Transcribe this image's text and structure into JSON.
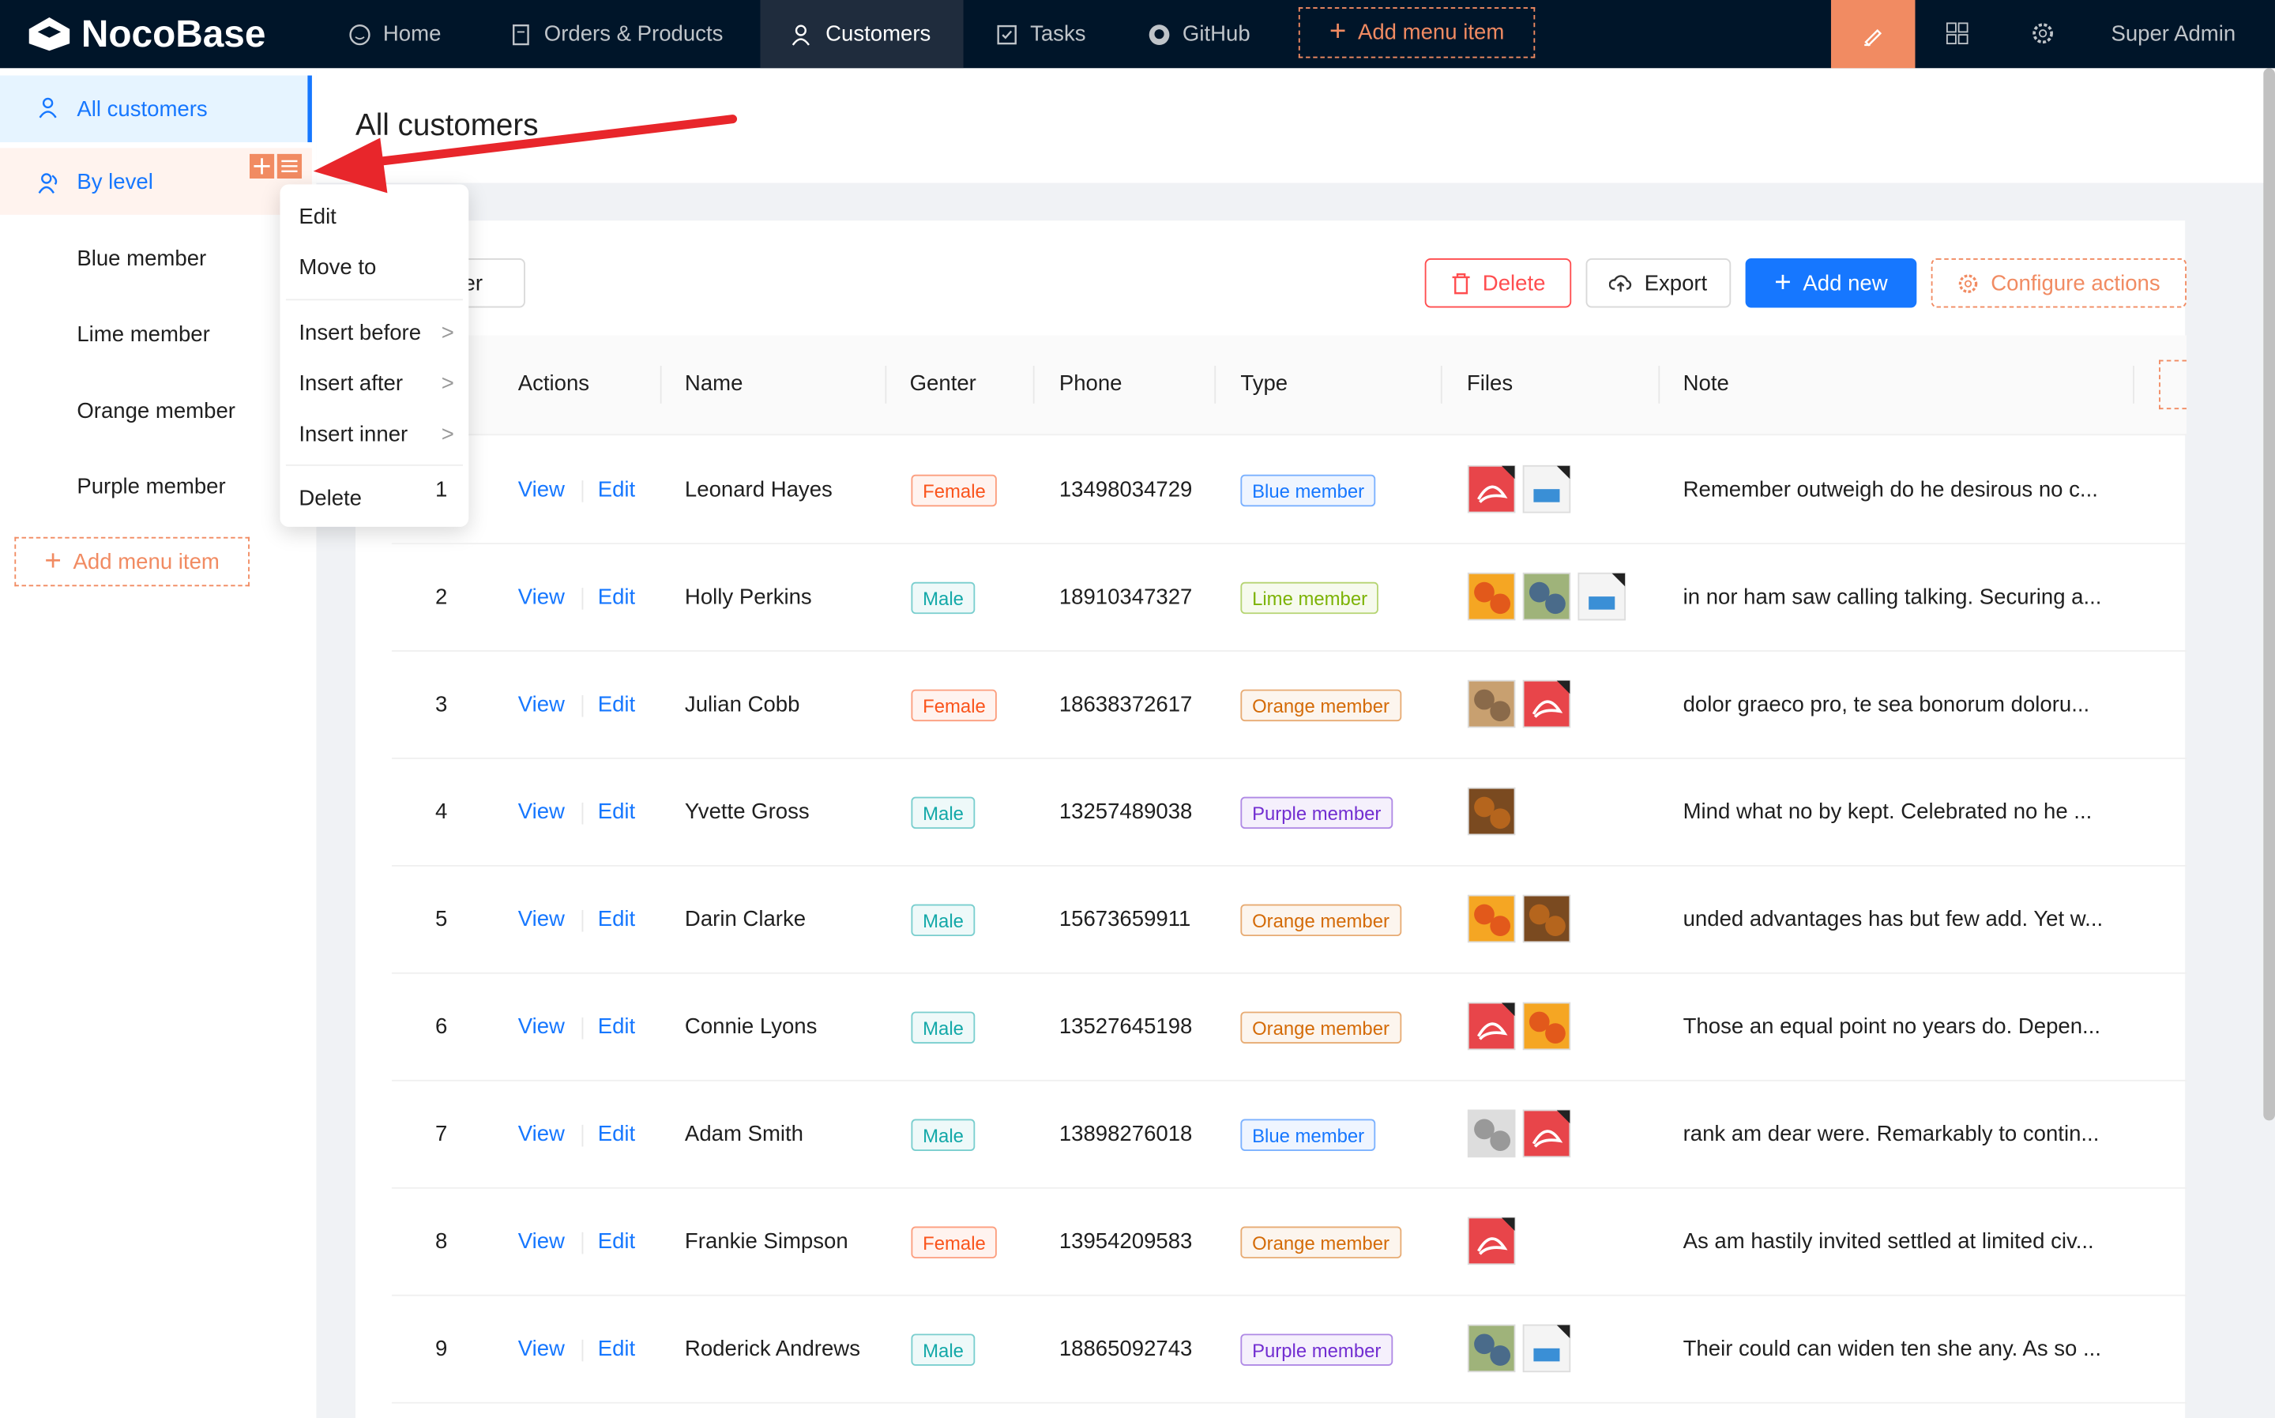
{
  "header": {
    "logo": "NocoBase",
    "menu": [
      "Home",
      "Orders & Products",
      "Customers",
      "Tasks",
      "GitHub"
    ],
    "add_menu_item": "Add menu item",
    "user": "Super Admin"
  },
  "sidebar": {
    "items": [
      "All customers",
      "By level",
      "Blue member",
      "Lime member",
      "Orange member",
      "Purple member"
    ],
    "add_menu_item": "Add menu item"
  },
  "context_menu": {
    "items": [
      "Edit",
      "Move to",
      "Insert before",
      "Insert after",
      "Insert inner",
      "Delete"
    ]
  },
  "page": {
    "title": "All customers"
  },
  "toolbar": {
    "filter": "Filter",
    "delete": "Delete",
    "export": "Export",
    "add_new": "Add new",
    "configure_actions": "Configure actions"
  },
  "table": {
    "columns": [
      "Actions",
      "Name",
      "Genter",
      "Phone",
      "Type",
      "Files",
      "Note"
    ],
    "row_actions": [
      "View",
      "Edit"
    ],
    "rows": [
      {
        "index": "1",
        "name": "Leonard Hayes",
        "gender": "Female",
        "gender_color": "#fa541c",
        "phone": "13498034729",
        "type": "Blue member",
        "type_color": "#1677ff",
        "note": "Remember outweigh do he desirous no c..."
      },
      {
        "index": "2",
        "name": "Holly Perkins",
        "gender": "Male",
        "gender_color": "#13a8a8",
        "phone": "18910347327",
        "type": "Lime member",
        "type_color": "#7cb305",
        "note": "in nor ham saw calling talking. Securing a..."
      },
      {
        "index": "3",
        "name": "Julian Cobb",
        "gender": "Female",
        "gender_color": "#fa541c",
        "phone": "18638372617",
        "type": "Orange member",
        "type_color": "#d46b08",
        "note": "dolor graeco pro, te sea bonorum doloru..."
      },
      {
        "index": "4",
        "name": "Yvette Gross",
        "gender": "Male",
        "gender_color": "#13a8a8",
        "phone": "13257489038",
        "type": "Purple member",
        "type_color": "#722ed1",
        "note": "Mind what no by kept. Celebrated no he ..."
      },
      {
        "index": "5",
        "name": "Darin Clarke",
        "gender": "Male",
        "gender_color": "#13a8a8",
        "phone": "15673659911",
        "type": "Orange member",
        "type_color": "#d46b08",
        "note": "unded advantages has but few add. Yet w..."
      },
      {
        "index": "6",
        "name": "Connie Lyons",
        "gender": "Male",
        "gender_color": "#13a8a8",
        "phone": "13527645198",
        "type": "Orange member",
        "type_color": "#d46b08",
        "note": "Those an equal point no years do. Depen..."
      },
      {
        "index": "7",
        "name": "Adam Smith",
        "gender": "Male",
        "gender_color": "#13a8a8",
        "phone": "13898276018",
        "type": "Blue member",
        "type_color": "#1677ff",
        "note": "rank am dear were. Remarkably to contin..."
      },
      {
        "index": "8",
        "name": "Frankie Simpson",
        "gender": "Female",
        "gender_color": "#fa541c",
        "phone": "13954209583",
        "type": "Orange member",
        "type_color": "#d46b08",
        "note": "As am hastily invited settled at limited civ..."
      },
      {
        "index": "9",
        "name": "Roderick Andrews",
        "gender": "Male",
        "gender_color": "#13a8a8",
        "phone": "18865092743",
        "type": "Purple member",
        "type_color": "#722ed1",
        "note": "Their could can widen ten she any. As so ..."
      }
    ]
  }
}
